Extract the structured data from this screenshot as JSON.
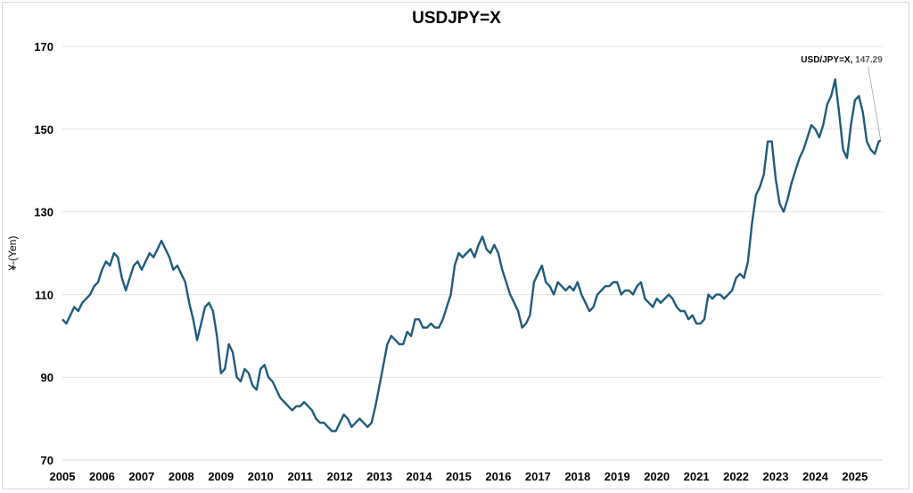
{
  "chart_data": {
    "type": "line",
    "title": "USDJPY=X",
    "ylabel": "¥-(Yen)",
    "xlabel": "",
    "ylim": [
      70,
      170
    ],
    "xlim": [
      2005,
      2025.7
    ],
    "yticks": [
      70,
      90,
      110,
      130,
      150,
      170
    ],
    "xticks": [
      "2005",
      "2006",
      "2007",
      "2008",
      "2009",
      "2010",
      "2011",
      "2012",
      "2013",
      "2014",
      "2015",
      "2016",
      "2017",
      "2018",
      "2019",
      "2020",
      "2021",
      "2022",
      "2023",
      "2024",
      "2025"
    ],
    "grid": true,
    "line_color": "#1f5c7d",
    "series": [
      {
        "x": [
          2005.0,
          2005.1,
          2005.2,
          2005.3,
          2005.4,
          2005.5,
          2005.6,
          2005.7,
          2005.8,
          2005.9,
          2006.0,
          2006.1,
          2006.2,
          2006.3,
          2006.4,
          2006.5,
          2006.6,
          2006.7,
          2006.8,
          2006.9,
          2007.0,
          2007.1,
          2007.2,
          2007.3,
          2007.4,
          2007.5,
          2007.6,
          2007.7,
          2007.8,
          2007.9,
          2008.0,
          2008.1,
          2008.2,
          2008.3,
          2008.4,
          2008.5,
          2008.6,
          2008.7,
          2008.8,
          2008.9,
          2009.0,
          2009.1,
          2009.2,
          2009.3,
          2009.4,
          2009.5,
          2009.6,
          2009.7,
          2009.8,
          2009.9,
          2010.0,
          2010.1,
          2010.2,
          2010.3,
          2010.4,
          2010.5,
          2010.6,
          2010.7,
          2010.8,
          2010.9,
          2011.0,
          2011.1,
          2011.2,
          2011.3,
          2011.4,
          2011.5,
          2011.6,
          2011.7,
          2011.8,
          2011.9,
          2012.0,
          2012.1,
          2012.2,
          2012.3,
          2012.4,
          2012.5,
          2012.6,
          2012.7,
          2012.8,
          2012.9,
          2013.0,
          2013.1,
          2013.2,
          2013.3,
          2013.4,
          2013.5,
          2013.6,
          2013.7,
          2013.8,
          2013.9,
          2014.0,
          2014.1,
          2014.2,
          2014.3,
          2014.4,
          2014.5,
          2014.6,
          2014.7,
          2014.8,
          2014.9,
          2015.0,
          2015.1,
          2015.2,
          2015.3,
          2015.4,
          2015.5,
          2015.6,
          2015.7,
          2015.8,
          2015.9,
          2016.0,
          2016.1,
          2016.2,
          2016.3,
          2016.4,
          2016.5,
          2016.6,
          2016.7,
          2016.8,
          2016.9,
          2017.0,
          2017.1,
          2017.2,
          2017.3,
          2017.4,
          2017.5,
          2017.6,
          2017.7,
          2017.8,
          2017.9,
          2018.0,
          2018.1,
          2018.2,
          2018.3,
          2018.4,
          2018.5,
          2018.6,
          2018.7,
          2018.8,
          2018.9,
          2019.0,
          2019.1,
          2019.2,
          2019.3,
          2019.4,
          2019.5,
          2019.6,
          2019.7,
          2019.8,
          2019.9,
          2020.0,
          2020.1,
          2020.2,
          2020.3,
          2020.4,
          2020.5,
          2020.6,
          2020.7,
          2020.8,
          2020.9,
          2021.0,
          2021.1,
          2021.2,
          2021.3,
          2021.4,
          2021.5,
          2021.6,
          2021.7,
          2021.8,
          2021.9,
          2022.0,
          2022.1,
          2022.2,
          2022.3,
          2022.4,
          2022.5,
          2022.6,
          2022.7,
          2022.8,
          2022.9,
          2023.0,
          2023.1,
          2023.2,
          2023.3,
          2023.4,
          2023.5,
          2023.6,
          2023.7,
          2023.8,
          2023.9,
          2024.0,
          2024.1,
          2024.2,
          2024.3,
          2024.4,
          2024.5,
          2024.6,
          2024.7,
          2024.8,
          2024.9,
          2025.0,
          2025.1,
          2025.2,
          2025.3,
          2025.4,
          2025.5,
          2025.6,
          2025.65
        ],
        "values": [
          104,
          103,
          105,
          107,
          106,
          108,
          109,
          110,
          112,
          113,
          116,
          118,
          117,
          120,
          119,
          114,
          111,
          114,
          117,
          118,
          116,
          118,
          120,
          119,
          121,
          123,
          121,
          119,
          116,
          117,
          115,
          113,
          108,
          104,
          99,
          103,
          107,
          108,
          106,
          100,
          91,
          92,
          98,
          96,
          90,
          89,
          92,
          91,
          88,
          87,
          92,
          93,
          90,
          89,
          87,
          85,
          84,
          83,
          82,
          83,
          83,
          84,
          83,
          82,
          80,
          79,
          79,
          78,
          77,
          77,
          79,
          81,
          80,
          78,
          79,
          80,
          79,
          78,
          79,
          83,
          88,
          93,
          98,
          100,
          99,
          98,
          98,
          101,
          100,
          104,
          104,
          102,
          102,
          103,
          102,
          102,
          104,
          107,
          110,
          117,
          120,
          119,
          120,
          121,
          119,
          122,
          124,
          121,
          120,
          122,
          120,
          116,
          113,
          110,
          108,
          106,
          102,
          103,
          105,
          113,
          115,
          117,
          113,
          112,
          110,
          113,
          112,
          111,
          112,
          111,
          113,
          110,
          108,
          106,
          107,
          110,
          111,
          112,
          112,
          113,
          113,
          110,
          111,
          111,
          110,
          112,
          113,
          109,
          108,
          107,
          109,
          108,
          109,
          110,
          109,
          107,
          106,
          106,
          104,
          105,
          103,
          103,
          104,
          110,
          109,
          110,
          110,
          109,
          110,
          111,
          114,
          115,
          114,
          118,
          127,
          134,
          136,
          139,
          147,
          147,
          138,
          132,
          130,
          133,
          137,
          140,
          143,
          145,
          148,
          151,
          150,
          148,
          151,
          156,
          158,
          162,
          154,
          145,
          143,
          151,
          157,
          158,
          154,
          147,
          145,
          144,
          147,
          147.29
        ]
      }
    ],
    "annotation": {
      "label": "USD/JPY=X",
      "value": "147.29",
      "separator": ", "
    }
  }
}
